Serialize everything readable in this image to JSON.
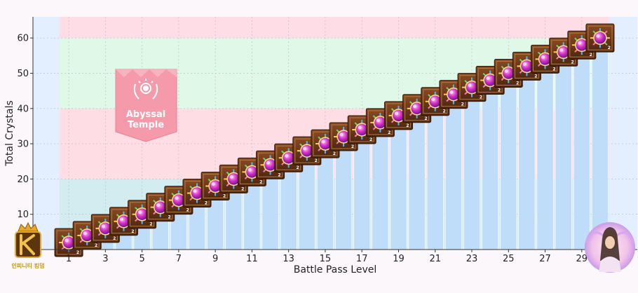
{
  "chart_data": {
    "type": "bar",
    "title": "",
    "xlabel": "Battle Pass Level",
    "ylabel": "Total Crystals",
    "x": [
      1,
      2,
      3,
      4,
      5,
      6,
      7,
      8,
      9,
      10,
      11,
      12,
      13,
      14,
      15,
      16,
      17,
      18,
      19,
      20,
      21,
      22,
      23,
      24,
      25,
      26,
      27,
      28,
      29,
      30
    ],
    "values": [
      2,
      4,
      6,
      8,
      10,
      12,
      14,
      16,
      18,
      20,
      22,
      24,
      26,
      28,
      30,
      32,
      34,
      36,
      38,
      40,
      42,
      44,
      46,
      48,
      50,
      52,
      54,
      56,
      58,
      60
    ],
    "x_tick_labels": [
      "1",
      "3",
      "5",
      "7",
      "9",
      "11",
      "13",
      "15",
      "17",
      "19",
      "21",
      "23",
      "25",
      "27",
      "29"
    ],
    "y_tick_labels": [
      "10",
      "20",
      "30",
      "40",
      "50",
      "60"
    ],
    "ylim": [
      0,
      66
    ],
    "grid": true,
    "bar_color": "#bfdcf8",
    "bands": [
      {
        "from": 0,
        "to": 20,
        "color": "#d3ecef"
      },
      {
        "from": 20,
        "to": 40,
        "color": "#ffdde4"
      },
      {
        "from": 40,
        "to": 60,
        "color": "#dff8e8"
      },
      {
        "from": 60,
        "to": 66,
        "color": "#ffdde6"
      }
    ],
    "bar_icon": {
      "name": "crystal-chest-icon",
      "count_label": "2"
    }
  },
  "badge": {
    "line1": "Abyssal",
    "line2": "Temple",
    "icon": "laurel-sun-emblem-icon",
    "color": "#f08a9a"
  },
  "logos": {
    "left": {
      "icon": "kingdom-k-logo-icon",
      "text": "인피니티 킹덤"
    },
    "right": {
      "icon": "winged-heroine-portrait-icon"
    }
  }
}
